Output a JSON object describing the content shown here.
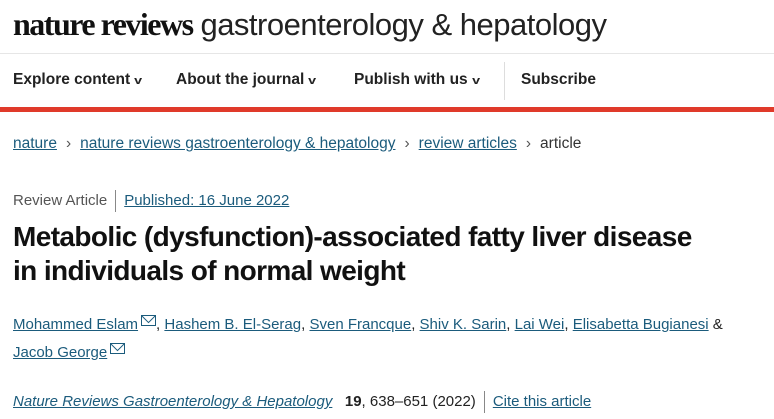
{
  "header": {
    "logo_bold": "nature reviews",
    "logo_light": "gastroenterology & hepatology"
  },
  "nav": {
    "items": [
      {
        "label": "Explore content"
      },
      {
        "label": "About the journal"
      },
      {
        "label": "Publish with us"
      }
    ],
    "subscribe": "Subscribe"
  },
  "breadcrumb": [
    "nature",
    "nature reviews gastroenterology & hepatology",
    "review articles",
    "article"
  ],
  "meta": {
    "type": "Review Article",
    "published": "Published: 16 June 2022"
  },
  "title": {
    "line1": "Metabolic (dysfunction)-associated fatty liver disease",
    "line2": "in individuals of normal weight"
  },
  "authors": [
    "Mohammed Eslam",
    "Hashem B. El-Serag",
    "Sven Francque",
    "Shiv K. Sarin",
    "Lai Wei",
    "Elisabetta Bugianesi",
    "Jacob George"
  ],
  "citation": {
    "journal": "Nature Reviews Gastroenterology & Hepatology",
    "volume": "19",
    "pages": ", 638–651 (2022)",
    "cite_label": "Cite this article"
  },
  "colors": {
    "link": "#1b5b7c",
    "accent_bar": "#e03a2a"
  }
}
